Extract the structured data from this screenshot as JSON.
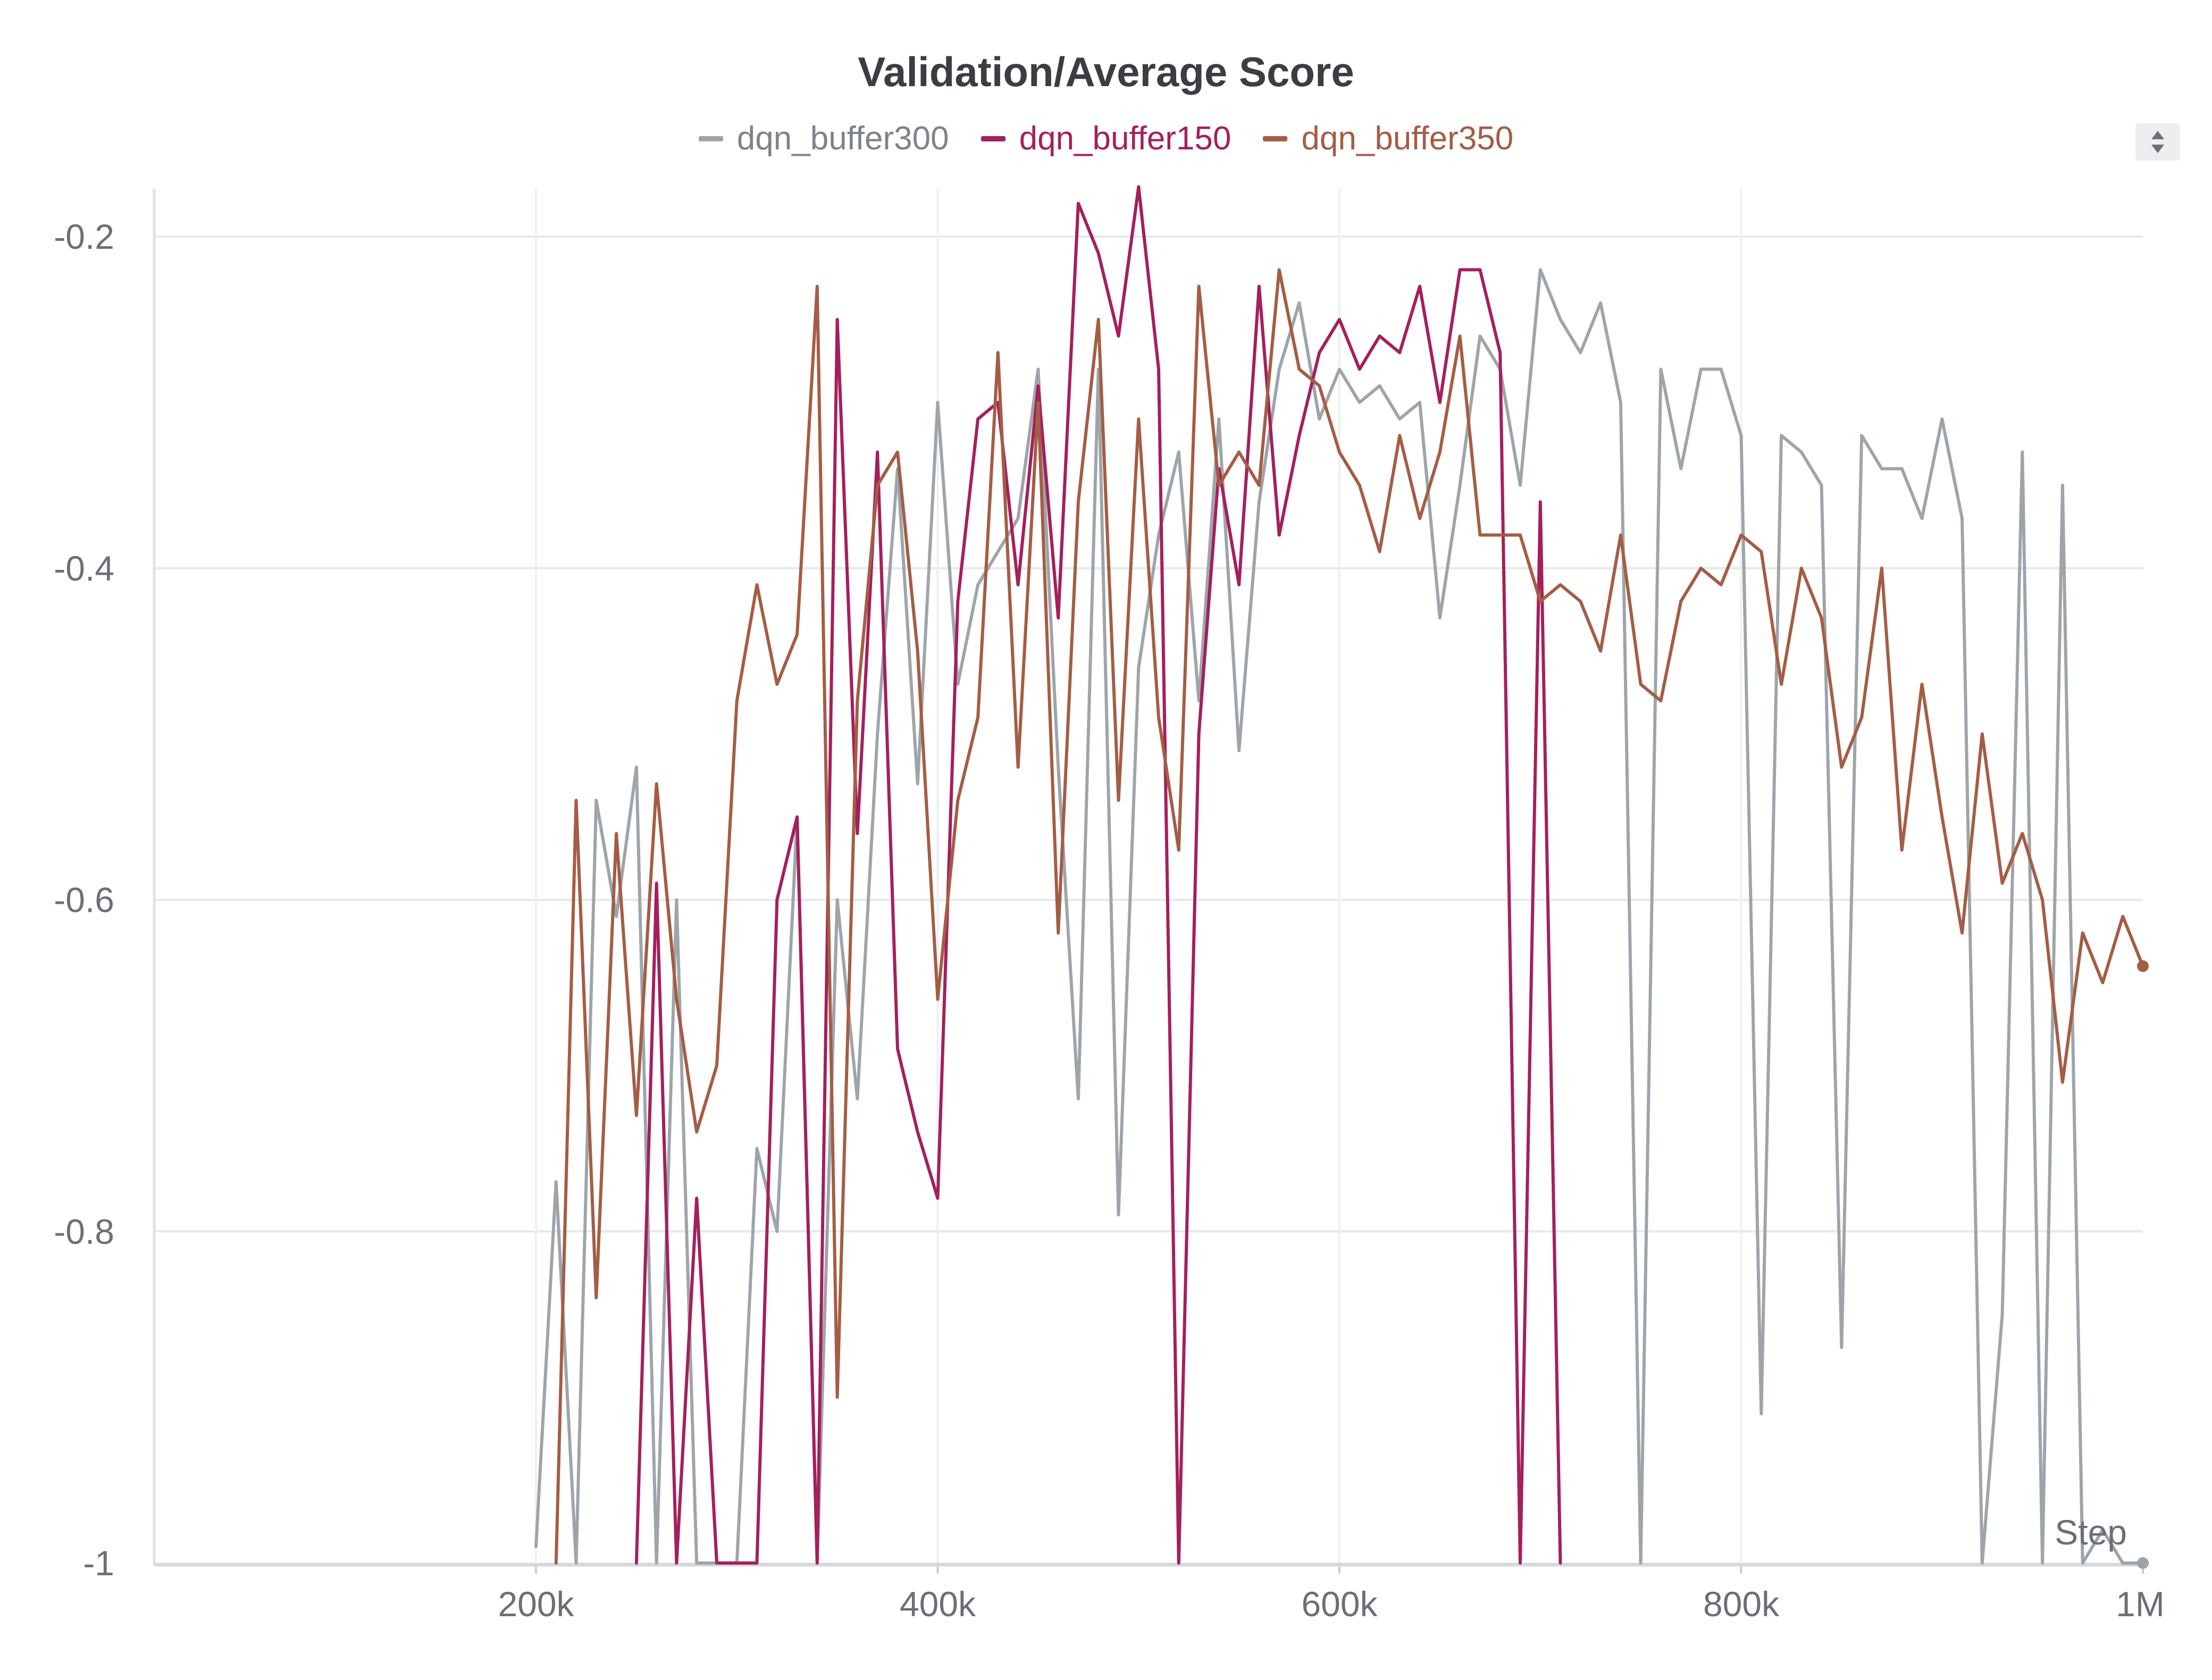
{
  "chart_data": {
    "type": "line",
    "title": "Validation/Average Score",
    "xlabel": "Step",
    "ylabel": "",
    "xlim": [
      0,
      1000000
    ],
    "ylim": [
      -1,
      -0.17
    ],
    "clip_min": -1,
    "x_ticks": [
      200000,
      400000,
      600000,
      800000,
      1000000
    ],
    "x_tick_labels": [
      "200k",
      "400k",
      "600k",
      "800k",
      "1M"
    ],
    "y_ticks": [
      -0.2,
      -0.4,
      -0.6,
      -0.8,
      -1
    ],
    "y_tick_labels": [
      "-0.2",
      "-0.4",
      "-0.6",
      "-0.8",
      "-1"
    ],
    "grid": true,
    "legend_position": "top-center",
    "series": [
      {
        "name": "dqn_buffer300",
        "color": "#9ea5aa",
        "x": [
          200000,
          210000,
          220000,
          230000,
          240000,
          250000,
          260000,
          270000,
          280000,
          290000,
          300000,
          310000,
          320000,
          330000,
          340000,
          350000,
          360000,
          370000,
          380000,
          390000,
          400000,
          410000,
          420000,
          430000,
          440000,
          450000,
          460000,
          470000,
          480000,
          490000,
          500000,
          510000,
          520000,
          530000,
          540000,
          550000,
          560000,
          570000,
          580000,
          590000,
          600000,
          610000,
          620000,
          630000,
          640000,
          650000,
          660000,
          670000,
          680000,
          690000,
          700000,
          710000,
          720000,
          730000,
          740000,
          750000,
          760000,
          770000,
          780000,
          790000,
          800000,
          810000,
          820000,
          830000,
          840000,
          850000,
          860000,
          870000,
          880000,
          890000,
          900000,
          910000,
          920000,
          930000,
          940000,
          950000,
          960000,
          970000,
          980000,
          990000,
          1000000
        ],
        "values": [
          -0.99,
          -0.77,
          -1.0,
          -0.54,
          -0.61,
          -0.52,
          -1.0,
          -0.6,
          -1.0,
          -1.0,
          -1.0,
          -0.75,
          -0.8,
          -0.55,
          -1.0,
          -0.6,
          -0.72,
          -0.5,
          -0.34,
          -0.53,
          -0.3,
          -0.47,
          -0.41,
          -0.39,
          -0.37,
          -0.28,
          -0.52,
          -0.72,
          -0.28,
          -0.79,
          -0.46,
          -0.38,
          -0.33,
          -0.48,
          -0.31,
          -0.51,
          -0.36,
          -0.28,
          -0.24,
          -0.31,
          -0.28,
          -0.3,
          -0.29,
          -0.31,
          -0.3,
          -0.43,
          -0.35,
          -0.26,
          -0.28,
          -0.35,
          -0.22,
          -0.25,
          -0.27,
          -0.24,
          -0.3,
          -1.0,
          -0.28,
          -0.34,
          -0.28,
          -0.28,
          -0.32,
          -0.91,
          -0.32,
          -0.33,
          -0.35,
          -0.87,
          -0.32,
          -0.34,
          -0.34,
          -0.37,
          -0.31,
          -0.37,
          -1.0,
          -0.85,
          -0.33,
          -1.0,
          -0.35,
          -1.0,
          -0.98,
          -1.0,
          -1.0
        ]
      },
      {
        "name": "dqn_buffer150",
        "color": "#a51f5c",
        "x": [
          250000,
          260000,
          270000,
          280000,
          290000,
          300000,
          310000,
          320000,
          330000,
          340000,
          350000,
          360000,
          370000,
          380000,
          390000,
          400000,
          410000,
          420000,
          430000,
          440000,
          450000,
          460000,
          470000,
          480000,
          490000,
          500000,
          510000,
          520000,
          530000,
          540000,
          550000,
          560000,
          570000,
          580000,
          590000,
          600000,
          610000,
          620000,
          630000,
          640000,
          650000,
          660000,
          670000,
          680000,
          690000,
          700000,
          710000
        ],
        "values": [
          -1.0,
          -0.59,
          -1.0,
          -0.78,
          -1.0,
          -1.0,
          -1.0,
          -0.6,
          -0.55,
          -1.0,
          -0.25,
          -0.56,
          -0.33,
          -0.69,
          -0.74,
          -0.78,
          -0.42,
          -0.31,
          -0.3,
          -0.41,
          -0.29,
          -0.43,
          -0.18,
          -0.21,
          -0.26,
          -0.17,
          -0.28,
          -1.0,
          -0.5,
          -0.34,
          -0.41,
          -0.23,
          -0.38,
          -0.32,
          -0.27,
          -0.25,
          -0.28,
          -0.26,
          -0.27,
          -0.23,
          -0.3,
          -0.22,
          -0.22,
          -0.27,
          -1.0,
          -0.36,
          -1.0
        ]
      },
      {
        "name": "dqn_buffer350",
        "color": "#a45d45",
        "x": [
          210000,
          220000,
          230000,
          240000,
          250000,
          260000,
          270000,
          280000,
          290000,
          300000,
          310000,
          320000,
          330000,
          340000,
          350000,
          360000,
          370000,
          380000,
          390000,
          400000,
          410000,
          420000,
          430000,
          440000,
          450000,
          460000,
          470000,
          480000,
          490000,
          500000,
          510000,
          520000,
          530000,
          540000,
          550000,
          560000,
          570000,
          580000,
          590000,
          600000,
          610000,
          620000,
          630000,
          640000,
          650000,
          660000,
          670000,
          680000,
          690000,
          700000,
          710000,
          720000,
          730000,
          740000,
          750000,
          760000,
          770000,
          780000,
          790000,
          800000,
          810000,
          820000,
          830000,
          840000,
          850000,
          860000,
          870000,
          880000,
          890000,
          900000,
          910000,
          920000,
          930000,
          940000,
          950000,
          960000,
          970000,
          980000,
          990000,
          1000000
        ],
        "values": [
          -1.0,
          -0.54,
          -0.84,
          -0.56,
          -0.73,
          -0.53,
          -0.66,
          -0.74,
          -0.7,
          -0.48,
          -0.41,
          -0.47,
          -0.44,
          -0.23,
          -0.9,
          -0.48,
          -0.35,
          -0.33,
          -0.45,
          -0.66,
          -0.54,
          -0.49,
          -0.27,
          -0.52,
          -0.3,
          -0.62,
          -0.36,
          -0.25,
          -0.54,
          -0.31,
          -0.49,
          -0.57,
          -0.23,
          -0.35,
          -0.33,
          -0.35,
          -0.22,
          -0.28,
          -0.29,
          -0.33,
          -0.35,
          -0.39,
          -0.32,
          -0.37,
          -0.33,
          -0.26,
          -0.38,
          -0.38,
          -0.38,
          -0.42,
          -0.41,
          -0.42,
          -0.45,
          -0.38,
          -0.47,
          -0.48,
          -0.42,
          -0.4,
          -0.41,
          -0.38,
          -0.39,
          -0.47,
          -0.4,
          -0.43,
          -0.52,
          -0.49,
          -0.4,
          -0.57,
          -0.47,
          -0.55,
          -0.62,
          -0.5,
          -0.59,
          -0.56,
          -0.6,
          -0.71,
          -0.62,
          -0.65,
          -0.61,
          -0.64
        ]
      }
    ]
  }
}
